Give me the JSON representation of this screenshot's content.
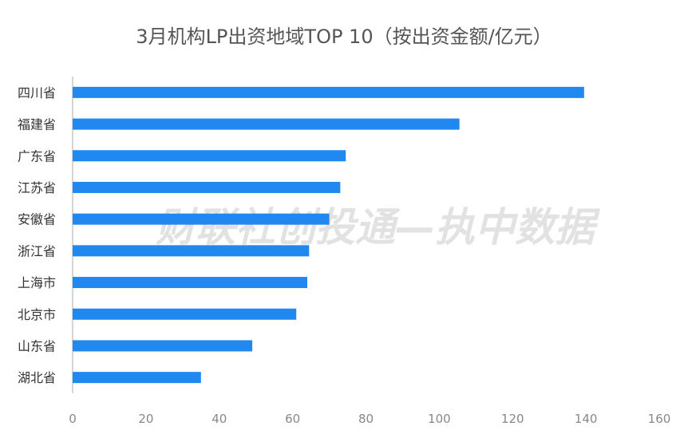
{
  "watermark": "财联社创投通—执中数据",
  "colors": {
    "bar": "#2188f0",
    "axis": "#c8c8c8",
    "text": "#333333",
    "tick": "#888888"
  },
  "chart_data": {
    "type": "bar",
    "orientation": "horizontal",
    "title": "3月机构LP出资地域TOP 10（按出资金额/亿元）",
    "categories": [
      "四川省",
      "福建省",
      "广东省",
      "江苏省",
      "安徽省",
      "浙江省",
      "上海市",
      "北京市",
      "山东省",
      "湖北省"
    ],
    "values": [
      139.5,
      105.5,
      74.5,
      73,
      70,
      64.5,
      64,
      61,
      49,
      35
    ],
    "xlim": [
      0,
      160
    ],
    "xticks": [
      0,
      20,
      40,
      60,
      80,
      100,
      120,
      140,
      160
    ],
    "grid": false,
    "legend": "none"
  }
}
